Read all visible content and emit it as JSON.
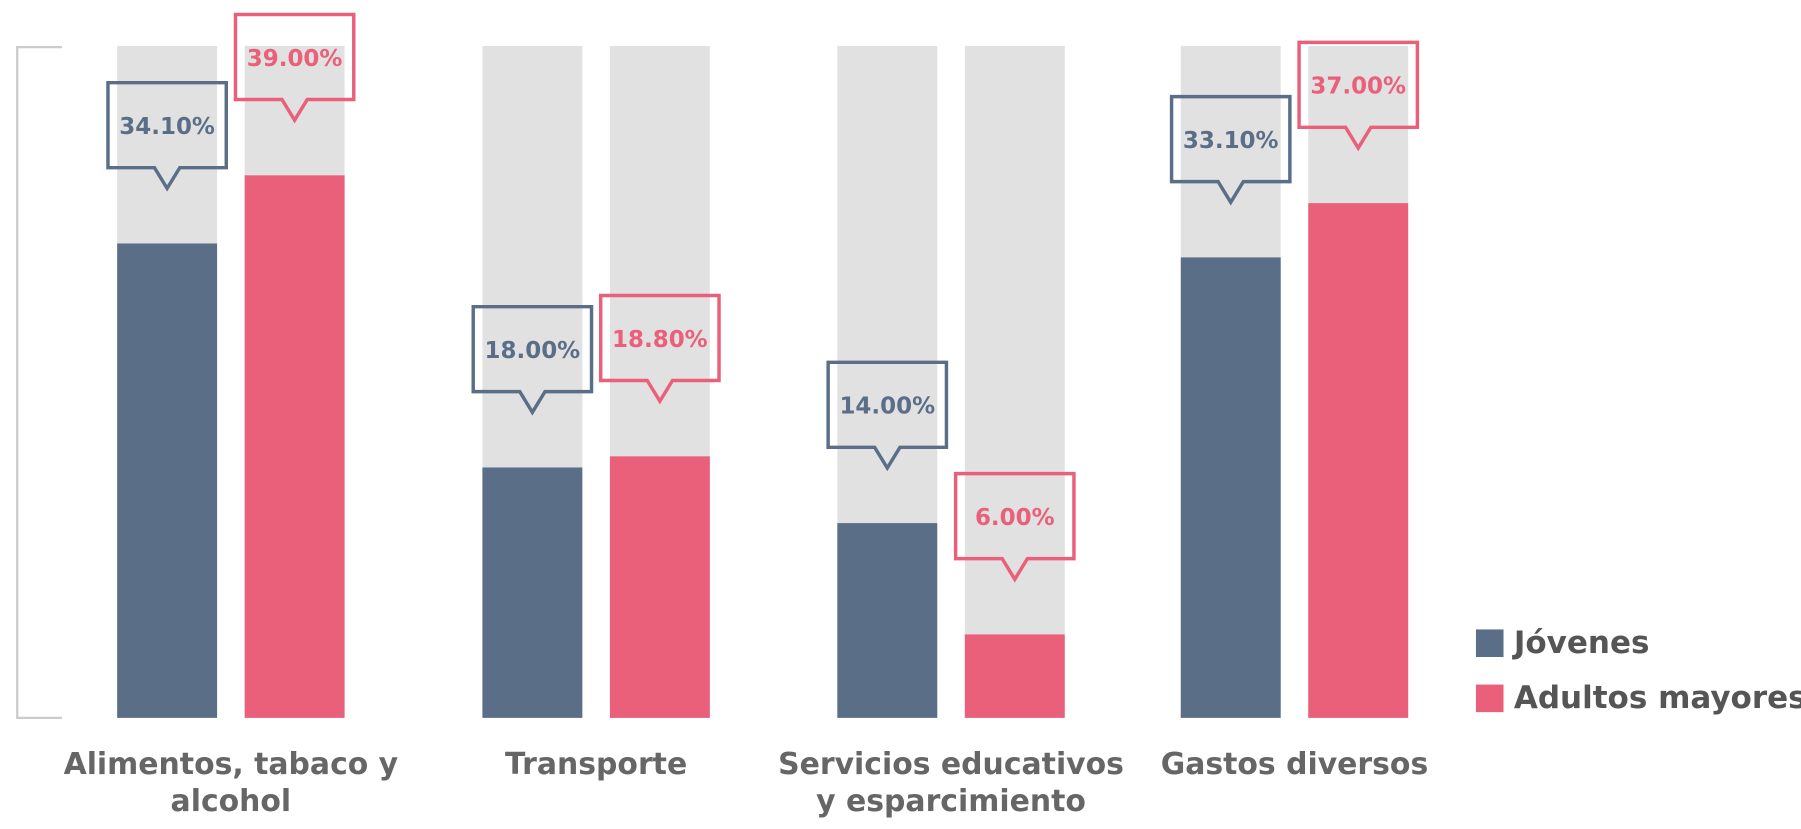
{
  "chart_data": {
    "type": "bar",
    "categories": [
      "Alimentos, tabaco y alcohol",
      "Transporte",
      "Servicios educativos y esparcimiento",
      "Gastos diversos"
    ],
    "series": [
      {
        "name": "Jóvenes",
        "color": "#5a6f87",
        "values": [
          34.1,
          18,
          14,
          33.1
        ],
        "value_labels": [
          "34.10%",
          "18.00%",
          "14.00%",
          "33.10%"
        ]
      },
      {
        "name": "Adultos mayores",
        "color": "#ea5f7a",
        "values": [
          39,
          18.8,
          6,
          37
        ],
        "value_labels": [
          "39.00%",
          "18.80%",
          "6.00%",
          "37.00%"
        ]
      }
    ],
    "ylim": [
      0,
      48.3
    ],
    "background_color": "#e1e1e1",
    "legend": "lower right"
  }
}
